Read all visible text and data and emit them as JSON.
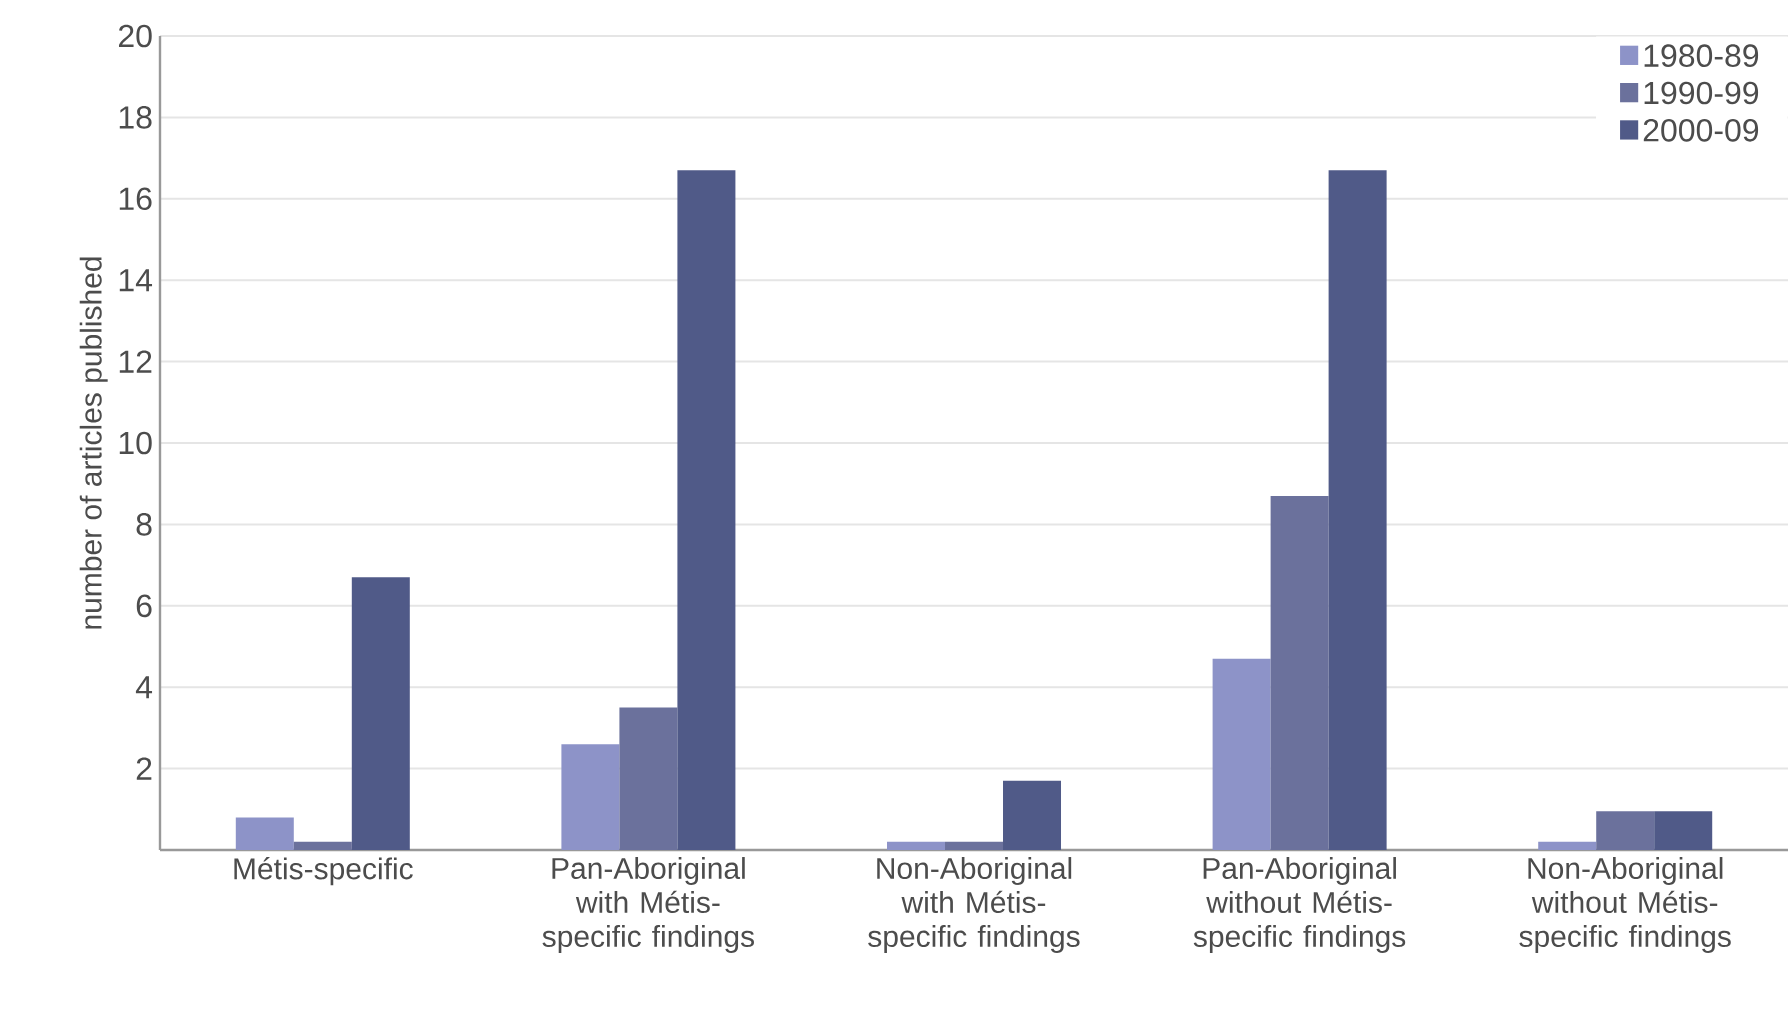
{
  "chart_data": {
    "type": "bar",
    "ylabel": "number of articles published",
    "categories": [
      "Métis-specific",
      "Pan-Aboriginal with Métis-specific findings",
      "Non-Aboriginal with Métis-specific findings",
      "Pan-Aboriginal without Métis-specific findings",
      "Non-Aboriginal without Métis-specific findings"
    ],
    "series": [
      {
        "name": "1980-89",
        "color": "#8d93c8",
        "values": [
          0.8,
          2.6,
          0.2,
          4.7,
          0.2
        ]
      },
      {
        "name": "1990-99",
        "color": "#6b719c",
        "values": [
          0.2,
          3.5,
          0.2,
          8.7,
          0.95
        ]
      },
      {
        "name": "2000-09",
        "color": "#505a88",
        "values": [
          6.7,
          16.7,
          1.7,
          16.7,
          0.95
        ]
      }
    ],
    "ylim": [
      0,
      20
    ],
    "yticks": [
      2,
      4,
      6,
      8,
      10,
      12,
      14,
      16,
      18,
      20
    ],
    "grid": "y",
    "legend": "top right"
  }
}
